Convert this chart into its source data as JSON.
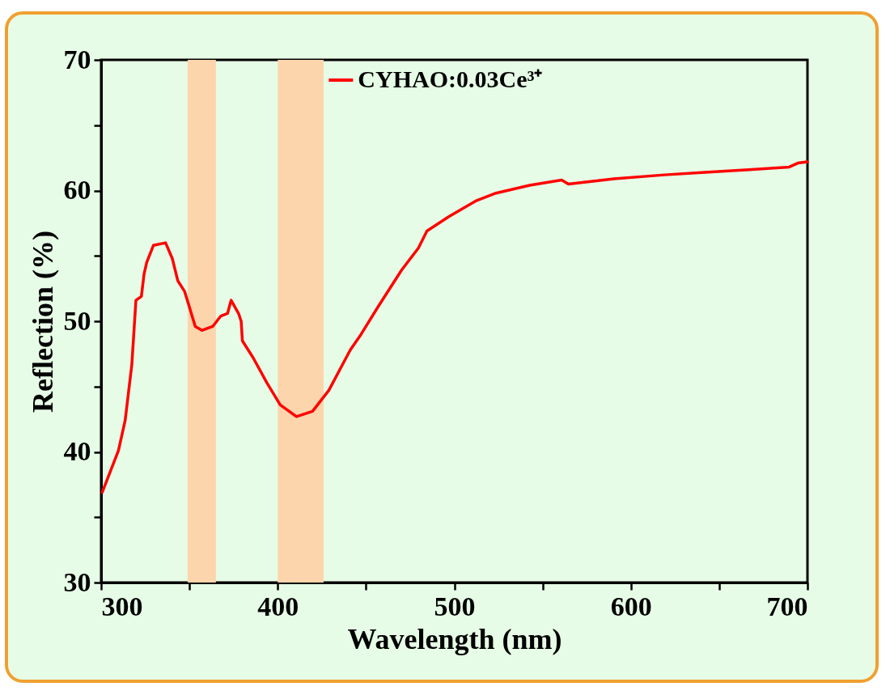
{
  "chart_data": {
    "type": "line",
    "xlabel": "Wavelength (nm)",
    "ylabel": "Reflection (%)",
    "x": [
      300.6,
      309.8,
      313.6,
      317.4,
      319.7,
      322.8,
      324.3,
      325.8,
      329.6,
      336.5,
      340.3,
      343.4,
      347.2,
      349.5,
      353.3,
      357.1,
      363.2,
      367.8,
      371.6,
      373.6,
      377.8,
      379.3,
      380.0,
      386.1,
      393.8,
      401.4,
      410.6,
      419.7,
      428.9,
      441.1,
      447.2,
      456.8,
      470.1,
      479.7,
      484.5,
      496.9,
      512.1,
      523.6,
      542.7,
      560.8,
      564.6,
      590.4,
      619.0,
      641.9,
      666.8,
      689.7,
      694.5,
      700.0
    ],
    "series": [
      {
        "name": "CYHAO:0.03Ce³⁺",
        "color": "#ff0000",
        "values": [
          36.9,
          40.1,
          42.4,
          46.7,
          51.6,
          51.9,
          53.6,
          54.5,
          55.8,
          56.0,
          54.8,
          53.1,
          52.3,
          51.3,
          49.6,
          49.3,
          49.6,
          50.4,
          50.6,
          51.6,
          50.6,
          50.0,
          48.5,
          47.2,
          45.3,
          43.6,
          42.7,
          43.1,
          44.7,
          47.8,
          49.0,
          51.1,
          53.9,
          55.6,
          56.9,
          58.0,
          59.2,
          59.8,
          60.4,
          60.8,
          60.5,
          60.9,
          61.2,
          61.4,
          61.6,
          61.8,
          62.1,
          62.2
        ]
      }
    ],
    "xlim": [
      300,
      700
    ],
    "ylim": [
      30,
      70
    ],
    "xticks": [
      300,
      {
        "value": 350,
        "label": null
      },
      400,
      {
        "value": 450,
        "label": null
      },
      500,
      {
        "value": 550,
        "label": null
      },
      600,
      {
        "value": 650,
        "label": null
      },
      700
    ],
    "yticks": [
      30,
      {
        "value": 35,
        "label": null
      },
      40,
      {
        "value": 45,
        "label": null
      },
      50,
      {
        "value": 55,
        "label": null
      },
      60,
      {
        "value": 65,
        "label": null
      },
      70
    ],
    "bands": [
      {
        "axis": "x",
        "from": 349,
        "to": 365,
        "color": "#fdd5ad"
      },
      {
        "axis": "x",
        "from": 400,
        "to": 426,
        "color": "#fdd5ad"
      }
    ],
    "grid": false,
    "legend": "top",
    "line_style": "solid"
  }
}
